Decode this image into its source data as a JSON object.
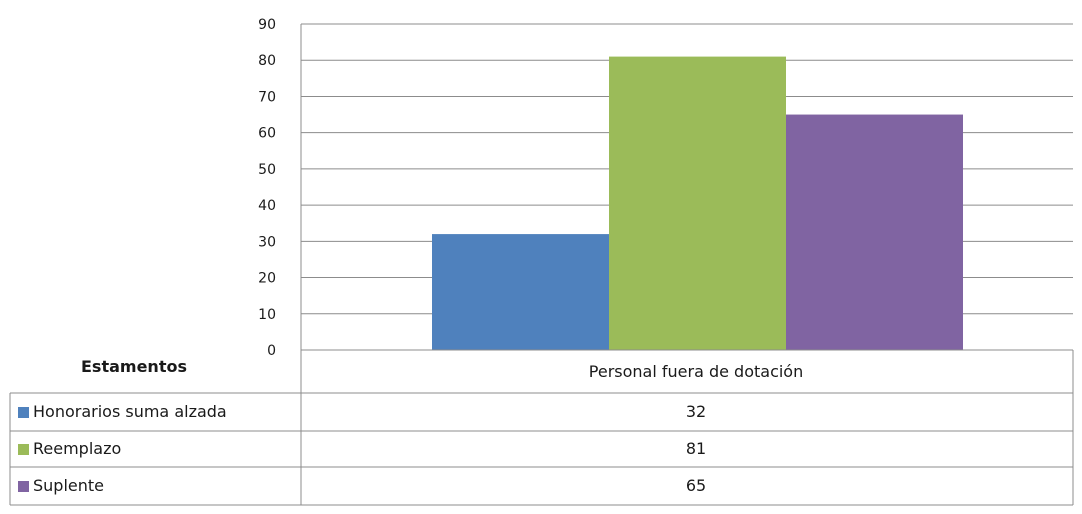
{
  "chart_data": {
    "type": "bar",
    "categories": [
      "Personal fuera de dotación"
    ],
    "series": [
      {
        "name": "Honorarios suma alzada",
        "values": [
          32
        ],
        "color": "#4f81bd"
      },
      {
        "name": "Reemplazo",
        "values": [
          81
        ],
        "color": "#9bbb59"
      },
      {
        "name": "Suplente",
        "values": [
          65
        ],
        "color": "#8064a2"
      }
    ],
    "ylim": [
      0,
      90
    ],
    "yticks": [
      "0",
      "10",
      "20",
      "30",
      "40",
      "50",
      "60",
      "70",
      "80",
      "90"
    ],
    "grid": true,
    "legend": "data-table-left",
    "table_header": "Estamentos",
    "table_values": [
      "32",
      "81",
      "65"
    ]
  }
}
